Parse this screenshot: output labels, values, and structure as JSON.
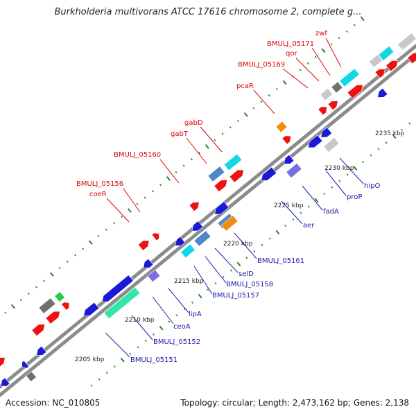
{
  "title": "Burkholderia multivorans ATCC 17616 chromosome 2, complete g...",
  "footer": {
    "accession": "Accession: NC_010805",
    "summary": "Topology: circular; Length: 2,473,162 bp; Genes: 2,138"
  },
  "colors": {
    "backbone": "#8c8c8c",
    "tick": "#2e7d32",
    "top_label": "#e00000",
    "bottom_label": "#1a1aaa",
    "forward_gene": "#ee1111",
    "reverse_gene": "#1a1ad6",
    "cyan": "#11d8e8",
    "steel": "#4f86c6",
    "purple": "#7a6be0",
    "orange": "#f08c10",
    "gray": "#707070",
    "light_gray": "#c8c8c8",
    "green": "#22cc44",
    "teal": "#33e6a6"
  },
  "scale_labels": [
    "2205 kbp",
    "2210 kbp",
    "2215 kbp",
    "2220 kbp",
    "2225 kbp",
    "2230 kbp",
    "2235 kbp"
  ],
  "top_genes": [
    "coeR",
    "BMULJ_05156",
    "BMULJ_05160",
    "gabT",
    "gabD",
    "pcaR",
    "BMULJ_05169",
    "qor",
    "BMULJ_05171",
    "zwf"
  ],
  "bottom_genes": [
    "BMULJ_05151",
    "BMULJ_05152",
    "ceoA",
    "lipA",
    "BMULJ_05157",
    "BMULJ_05158",
    "selD",
    "BMULJ_05161",
    "aer",
    "fadA",
    "proP",
    "hipO"
  ]
}
